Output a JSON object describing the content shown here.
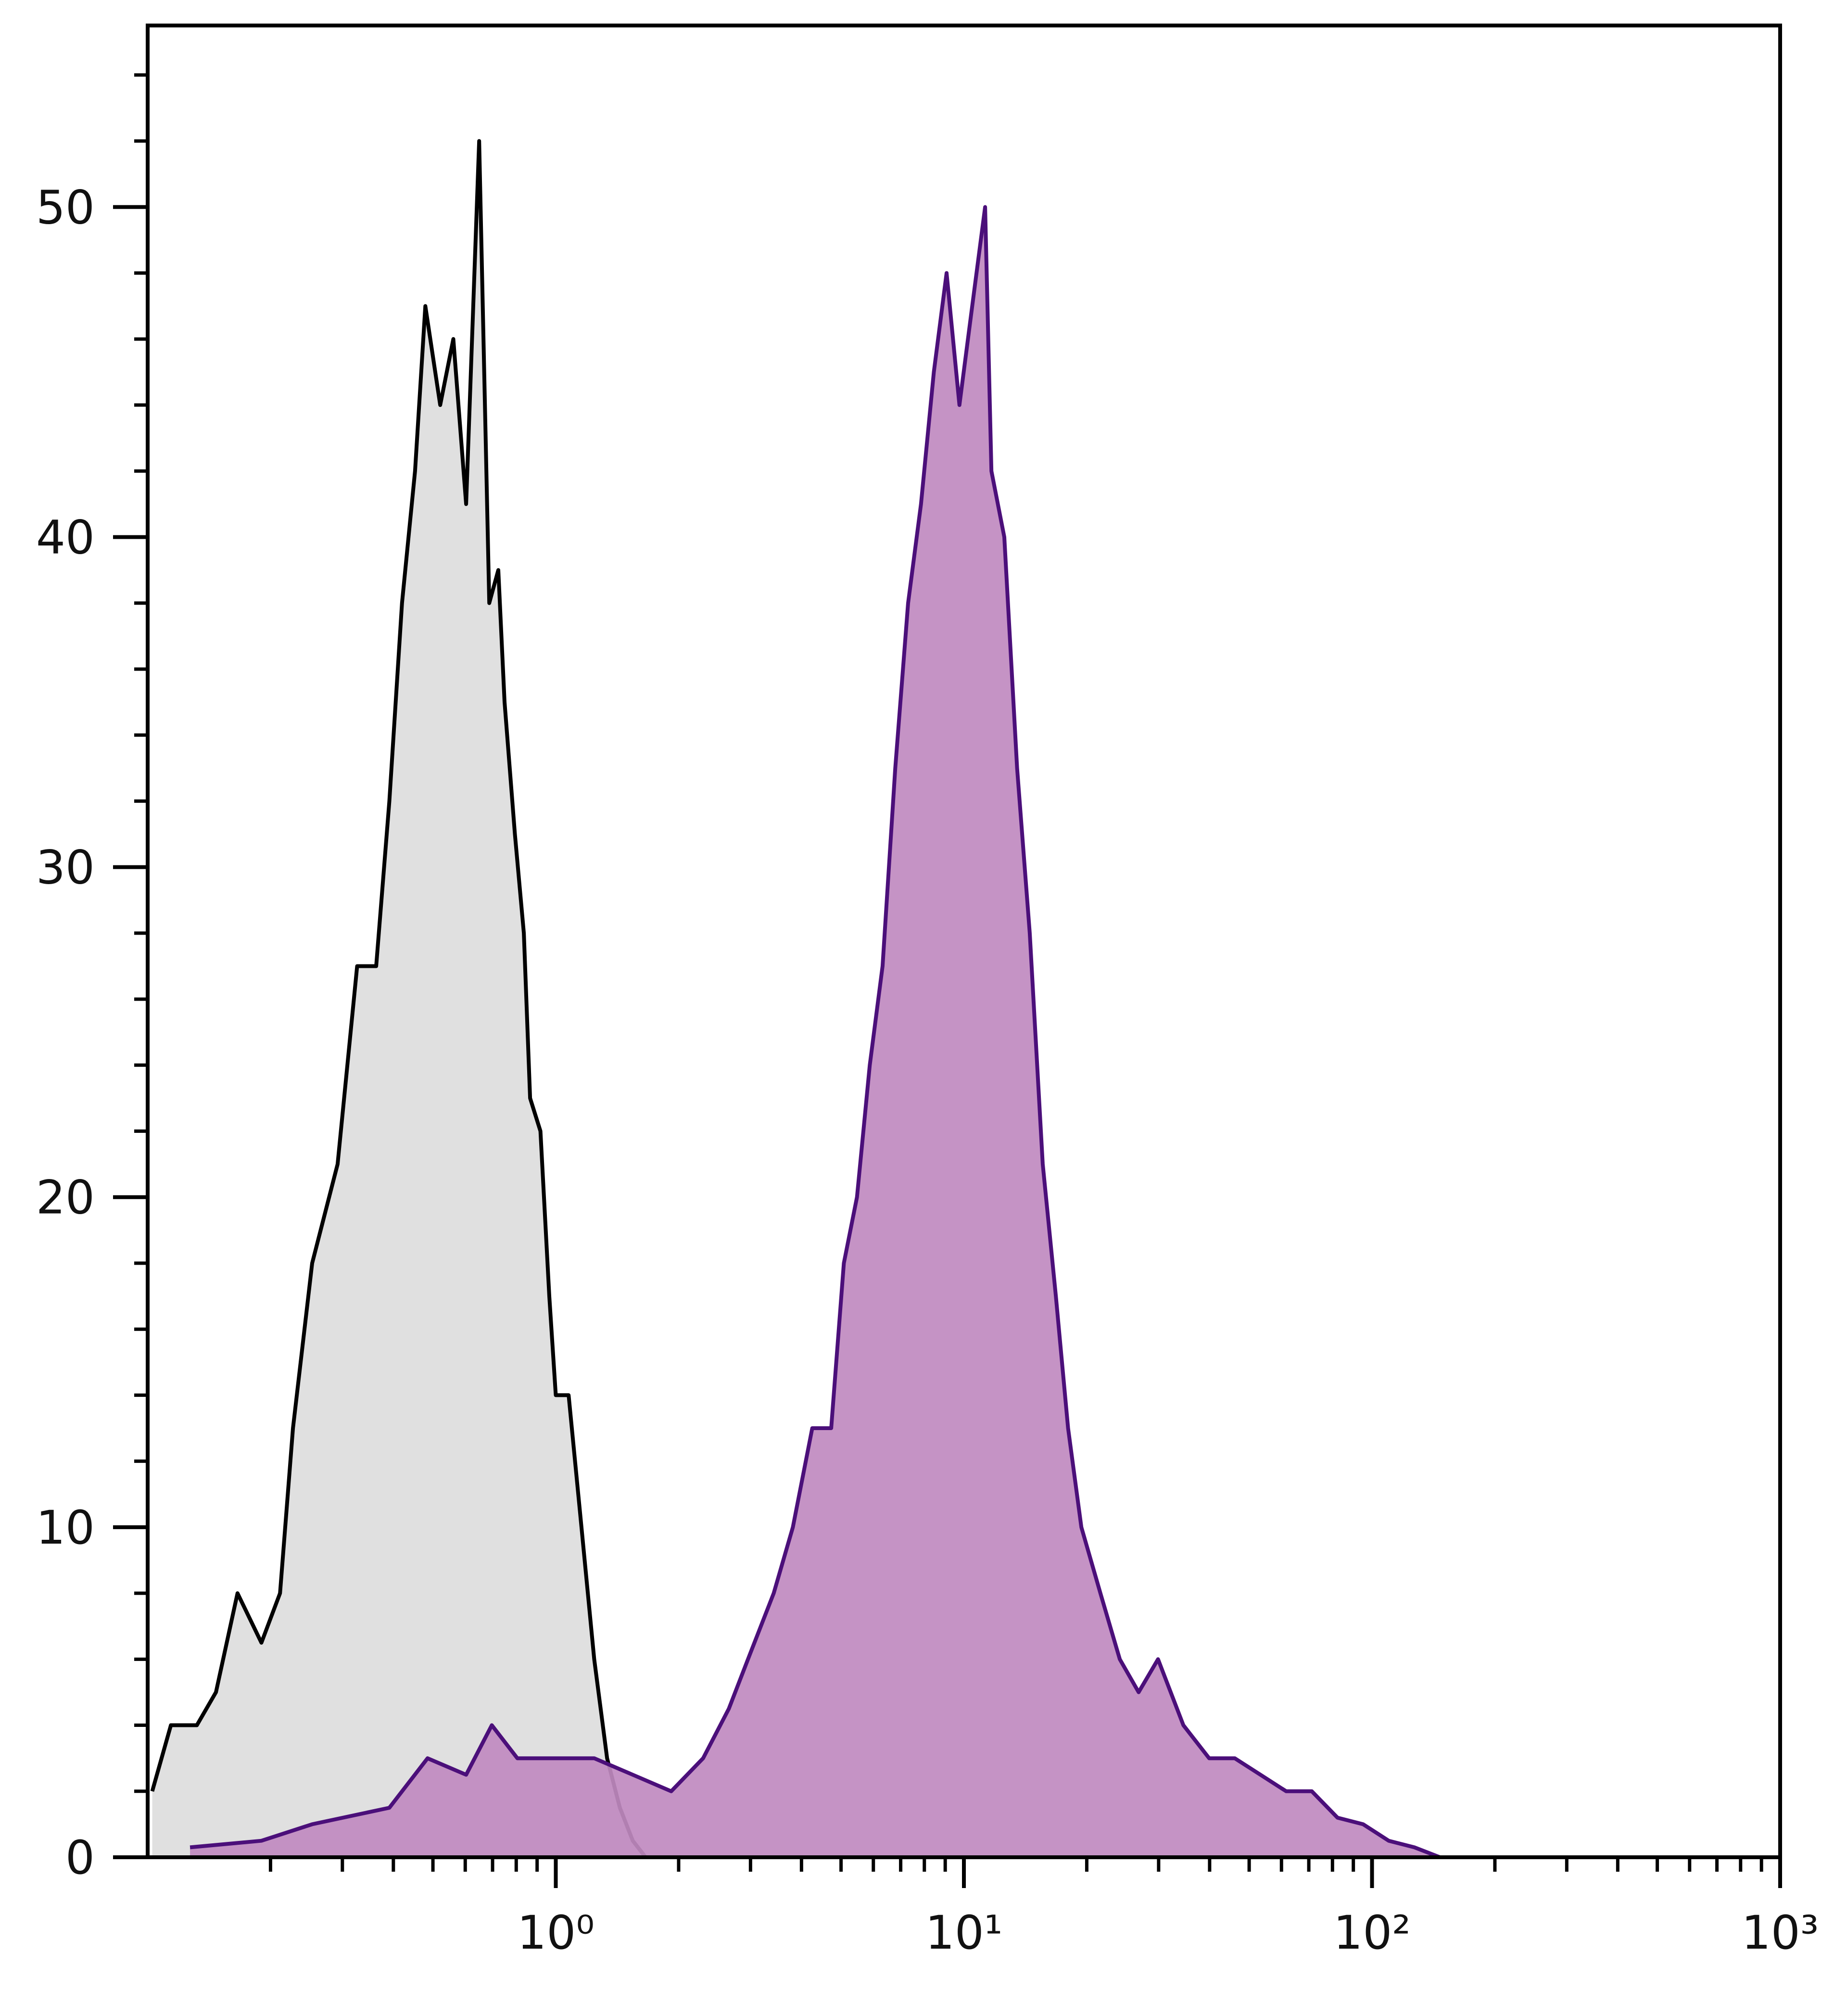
{
  "chart_data": {
    "type": "histogram-line",
    "xscale": "log",
    "xlim": [
      0.1,
      1000
    ],
    "ylim": [
      0,
      55.5
    ],
    "xticks": [
      {
        "value": 1,
        "label": "10⁰"
      },
      {
        "value": 10,
        "label": "10¹"
      },
      {
        "value": 100,
        "label": "10²"
      },
      {
        "value": 1000,
        "label": "10³"
      }
    ],
    "xminorticks": [
      0.2,
      0.3,
      0.4,
      0.5,
      0.6,
      0.7,
      0.8,
      0.9,
      2,
      3,
      4,
      5,
      6,
      7,
      8,
      9,
      20,
      30,
      40,
      50,
      60,
      70,
      80,
      90,
      200,
      300,
      400,
      500,
      600,
      700,
      800,
      900
    ],
    "yticks": [
      0,
      10,
      20,
      30,
      40,
      50
    ],
    "yminorticks": [
      2,
      4,
      6,
      8,
      12,
      14,
      16,
      18,
      22,
      24,
      26,
      28,
      32,
      34,
      36,
      38,
      42,
      44,
      46,
      48,
      52,
      54
    ],
    "series": [
      {
        "color": "#000000",
        "fill": "#e0e0e0",
        "x": [
          0.1026,
          0.114,
          0.132,
          0.147,
          0.166,
          0.19,
          0.211,
          0.227,
          0.253,
          0.292,
          0.326,
          0.363,
          0.391,
          0.42,
          0.452,
          0.479,
          0.521,
          0.561,
          0.603,
          0.649,
          0.687,
          0.723,
          0.749,
          0.794,
          0.835,
          0.865,
          0.917,
          0.964,
          1.0,
          1.075,
          1.156,
          1.242,
          1.336,
          1.436,
          1.544,
          1.66
        ],
        "values": [
          2,
          4,
          4,
          5,
          8,
          6.5,
          8,
          13,
          18,
          21,
          27,
          27,
          32,
          38,
          42,
          47,
          44,
          46,
          41,
          52,
          38,
          39,
          35,
          31,
          28,
          23,
          22,
          17,
          14,
          14,
          10,
          6,
          3,
          1.5,
          0.5,
          0
        ]
      },
      {
        "color": "#4b0f7a",
        "fill": "#c08ac0",
        "x": [
          0.127,
          0.19,
          0.253,
          0.391,
          0.485,
          0.603,
          0.697,
          0.805,
          1,
          1.242,
          1.544,
          1.918,
          2.296,
          2.655,
          2.958,
          3.42,
          3.81,
          4.25,
          4.73,
          5.08,
          5.47,
          5.88,
          6.32,
          6.79,
          7.3,
          7.85,
          8.44,
          9.07,
          9.75,
          10.48,
          11.27,
          11.68,
          12.56,
          13.5,
          14.5,
          15.6,
          16.8,
          18.0,
          19.4,
          21.6,
          24.1,
          26.8,
          29.9,
          34.5,
          39.9,
          46.1,
          53.3,
          61.6,
          71.2,
          82.3,
          95.1,
          109.9,
          127,
          146.7
        ],
        "values": [
          0.3,
          0.5,
          1,
          1.5,
          3,
          2.5,
          4,
          3,
          3,
          3,
          2.5,
          2,
          3,
          4.5,
          6,
          8,
          10,
          13,
          13,
          18,
          20,
          24,
          27,
          33,
          38,
          41,
          45,
          48,
          44,
          47,
          50,
          42,
          40,
          33,
          28,
          21,
          17,
          13,
          10,
          8,
          6,
          5,
          6,
          4,
          3,
          3,
          2.5,
          2,
          2,
          1.2,
          1,
          0.5,
          0.3,
          0
        ]
      }
    ]
  }
}
